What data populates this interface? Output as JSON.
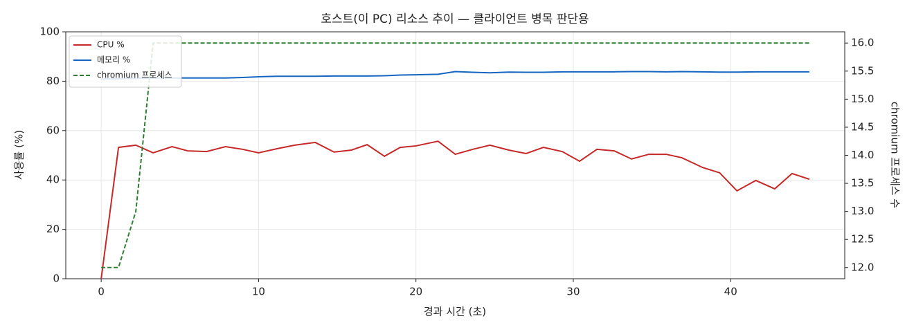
{
  "chart_data": {
    "type": "line",
    "title": "호스트(이 PC) 리소스 추이 — 클라이언트 병목 판단용",
    "x_label": "경과 시간 (초)",
    "y_label": "사용률 (%)",
    "y2_label": "chromium 프로세스 수",
    "x": [
      0,
      1.1,
      2.2,
      3.3,
      4.5,
      5.5,
      6.7,
      7.9,
      9.0,
      10.0,
      11.2,
      12.3,
      13.6,
      14.8,
      15.9,
      16.9,
      18.0,
      19.0,
      20.0,
      21.4,
      22.5,
      23.6,
      24.7,
      25.9,
      27.0,
      28.1,
      29.3,
      30.4,
      31.5,
      32.6,
      33.7,
      34.8,
      35.9,
      36.9,
      38.2,
      39.3,
      40.4,
      41.6,
      42.8,
      43.9,
      45.0
    ],
    "series": [
      {
        "name": "CPU %",
        "color": "#c62828",
        "dashed": false,
        "axis": "y",
        "values": [
          0,
          53.2,
          54.1,
          51,
          53.5,
          51.8,
          51.5,
          53.5,
          52.4,
          51,
          52.7,
          54.1,
          55.2,
          51.3,
          52.1,
          54.3,
          49.6,
          53.2,
          53.8,
          55.7,
          50.4,
          52.4,
          54.1,
          52.1,
          50.7,
          53.2,
          51.5,
          47.6,
          52.4,
          51.8,
          48.5,
          50.4,
          50.4,
          49,
          45.1,
          42.9,
          35.6,
          39.8,
          36.4,
          42.6,
          40.3
        ]
      },
      {
        "name": "메모리 %",
        "color": "#1565c0",
        "dashed": false,
        "axis": "y",
        "values": [
          81.0,
          81.0,
          81.2,
          81.3,
          81.3,
          81.3,
          81.3,
          81.3,
          81.5,
          81.8,
          82.0,
          82.0,
          82.0,
          82.1,
          82.1,
          82.1,
          82.2,
          82.5,
          82.6,
          82.8,
          83.9,
          83.6,
          83.4,
          83.7,
          83.6,
          83.6,
          83.8,
          83.8,
          83.8,
          83.8,
          83.9,
          83.9,
          83.8,
          83.9,
          83.8,
          83.7,
          83.7,
          83.8,
          83.8,
          83.8,
          83.8
        ]
      },
      {
        "name": "chromium 프로세스",
        "color": "#2e7d32",
        "dashed": true,
        "axis": "y2",
        "values": [
          12,
          12,
          13,
          16,
          16,
          16,
          16,
          16,
          16,
          16,
          16,
          16,
          16,
          16,
          16,
          16,
          16,
          16,
          16,
          16,
          16,
          16,
          16,
          16,
          16,
          16,
          16,
          16,
          16,
          16,
          16,
          16,
          16,
          16,
          16,
          16,
          16,
          16,
          16,
          16,
          16
        ]
      }
    ],
    "xlim": [
      -2.25,
      47.25
    ],
    "xticks": [
      0,
      10,
      20,
      30,
      40
    ],
    "ylim": [
      0,
      100
    ],
    "yticks": [
      0,
      20,
      40,
      60,
      80,
      100
    ],
    "y2lim": [
      11.8,
      16.2
    ],
    "y2ticks": [
      {
        "value": 12,
        "label": "12.0"
      },
      {
        "value": 12.5,
        "label": "12.5"
      },
      {
        "value": 13,
        "label": "13.0"
      },
      {
        "value": 13.5,
        "label": "13.5"
      },
      {
        "value": 14,
        "label": "14.0"
      },
      {
        "value": 14.5,
        "label": "14.5"
      },
      {
        "value": 15,
        "label": "15.0"
      },
      {
        "value": 15.5,
        "label": "15.5"
      },
      {
        "value": 16,
        "label": "16.0"
      }
    ],
    "grid": true,
    "legend": "upper left"
  }
}
